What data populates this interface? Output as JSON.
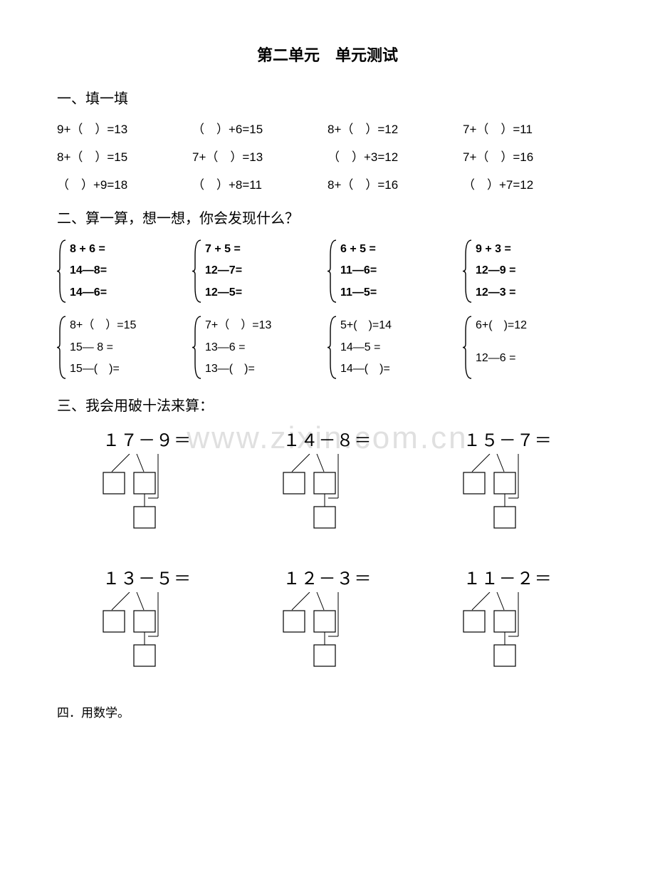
{
  "title": "第二单元　单元测试",
  "section1": {
    "heading": "一、填一填",
    "rows": [
      [
        "9+（　）=13",
        "（　）+6=15",
        "8+（　）=12",
        "7+（　）=11"
      ],
      [
        "8+（　）=15",
        "7+（　）=13",
        "（　）+3=12",
        "7+（　）=16"
      ],
      [
        "（　）+9=18",
        "（　）+8=11",
        "8+（　）=16",
        "（　）+7=12"
      ]
    ]
  },
  "section2": {
    "heading": "二、算一算，想一想，你会发现什么？",
    "groupsRow1": [
      [
        "8 + 6 =",
        "14—8=",
        "14—6="
      ],
      [
        "7 + 5 =",
        "12—7=",
        "12—5="
      ],
      [
        "6 + 5 =",
        "11—6=",
        "11—5="
      ],
      [
        "9 + 3 =",
        "12—9 =",
        "12—3 ="
      ]
    ],
    "groupsRow2": [
      [
        "8+（　）=15",
        "15— 8  =",
        "15—(　)="
      ],
      [
        "7+（　）=13",
        "13—6 =",
        "13—(　)="
      ],
      [
        "5+(　)=14",
        "14—5 =",
        "14—(　)="
      ],
      [
        "6+(　)=12",
        "12—6   =",
        ""
      ]
    ],
    "row1Bold": true,
    "row2Bold": false
  },
  "watermark": "www.zixin.com.cn",
  "section3": {
    "heading": "三、我会用破十法来算：",
    "row1": [
      "１７－９＝",
      "１４－８＝",
      "１５－７＝"
    ],
    "row2": [
      "１３－５＝",
      "１２－３＝",
      "１１－２＝"
    ]
  },
  "section4": {
    "heading": "四．用数学。"
  },
  "colors": {
    "text": "#000000",
    "bg": "#ffffff",
    "watermark": "#e0e0e0"
  }
}
